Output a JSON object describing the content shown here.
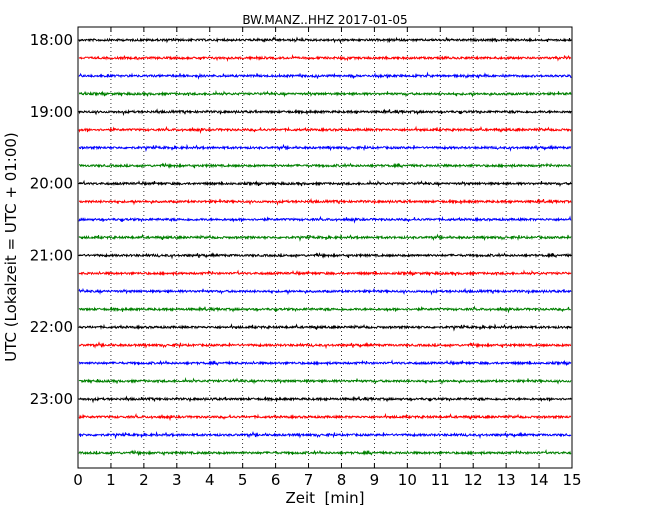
{
  "chart_data": {
    "type": "line",
    "title": "BW.MANZ..HHZ 2017-01-05",
    "xlabel": "Zeit  [min]",
    "ylabel": "UTC (Lokalzeit = UTC + 01:00)",
    "xlim": [
      0,
      15
    ],
    "x_ticks": [
      "0",
      "1",
      "2",
      "3",
      "4",
      "5",
      "6",
      "7",
      "8",
      "9",
      "10",
      "11",
      "12",
      "13",
      "14",
      "15"
    ],
    "y_tick_labels": [
      "18:00",
      "19:00",
      "20:00",
      "21:00",
      "22:00",
      "23:00"
    ],
    "vertical_grid": "dotted",
    "trace_colors": [
      "#000000",
      "#ff0000",
      "#0000ff",
      "#008000"
    ],
    "series": [
      {
        "start": "18:00",
        "color": "#000000"
      },
      {
        "start": "18:15",
        "color": "#ff0000"
      },
      {
        "start": "18:30",
        "color": "#0000ff"
      },
      {
        "start": "18:45",
        "color": "#008000"
      },
      {
        "start": "19:00",
        "color": "#000000"
      },
      {
        "start": "19:15",
        "color": "#ff0000"
      },
      {
        "start": "19:30",
        "color": "#0000ff"
      },
      {
        "start": "19:45",
        "color": "#008000"
      },
      {
        "start": "20:00",
        "color": "#000000"
      },
      {
        "start": "20:15",
        "color": "#ff0000"
      },
      {
        "start": "20:30",
        "color": "#0000ff"
      },
      {
        "start": "20:45",
        "color": "#008000"
      },
      {
        "start": "21:00",
        "color": "#000000"
      },
      {
        "start": "21:15",
        "color": "#ff0000"
      },
      {
        "start": "21:30",
        "color": "#0000ff"
      },
      {
        "start": "21:45",
        "color": "#008000"
      },
      {
        "start": "22:00",
        "color": "#000000"
      },
      {
        "start": "22:15",
        "color": "#ff0000"
      },
      {
        "start": "22:30",
        "color": "#0000ff"
      },
      {
        "start": "22:45",
        "color": "#008000"
      },
      {
        "start": "23:00",
        "color": "#000000"
      },
      {
        "start": "23:15",
        "color": "#ff0000"
      },
      {
        "start": "23:30",
        "color": "#0000ff"
      },
      {
        "start": "23:45",
        "color": "#008000"
      }
    ]
  }
}
